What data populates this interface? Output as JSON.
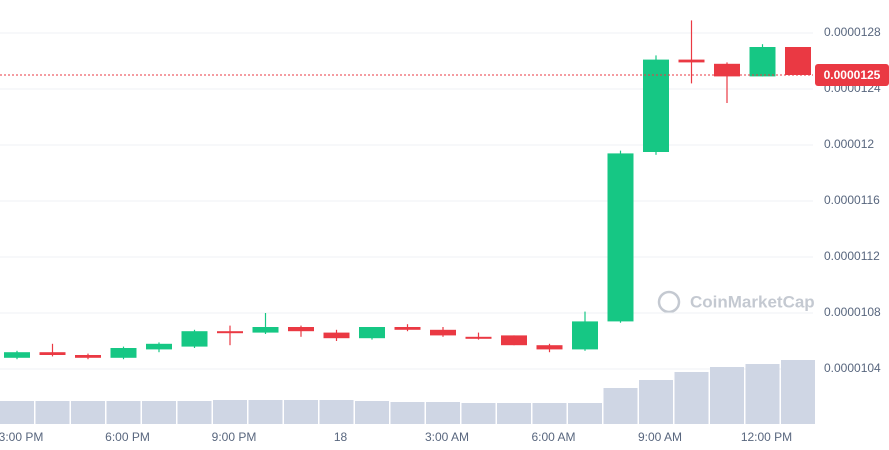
{
  "chart_data": {
    "type": "candlestick",
    "categories": [
      "3:00 PM",
      null,
      null,
      "6:00 PM",
      null,
      null,
      "9:00 PM",
      null,
      null,
      "18",
      null,
      null,
      "3:00 AM",
      null,
      null,
      "6:00 AM",
      null,
      null,
      "9:00 AM",
      null,
      null,
      "12:00 PM",
      null
    ],
    "open": [
      1.048e-05,
      1.052e-05,
      1.05e-05,
      1.048e-05,
      1.054e-05,
      1.056e-05,
      1.067e-05,
      1.066e-05,
      1.07e-05,
      1.066e-05,
      1.062e-05,
      1.07e-05,
      1.068e-05,
      1.063e-05,
      1.064e-05,
      1.057e-05,
      1.054e-05,
      1.074e-05,
      1.195e-05,
      1.261e-05,
      1.258e-05,
      1.249e-05,
      1.27e-05
    ],
    "high": [
      1.053e-05,
      1.058e-05,
      1.051e-05,
      1.056e-05,
      1.059e-05,
      1.068e-05,
      1.071e-05,
      1.08e-05,
      1.071e-05,
      1.068e-05,
      1.07e-05,
      1.072e-05,
      1.07e-05,
      1.066e-05,
      1.064e-05,
      1.058e-05,
      1.081e-05,
      1.196e-05,
      1.264e-05,
      1.289e-05,
      1.259e-05,
      1.272e-05,
      1.27e-05
    ],
    "low": [
      1.047e-05,
      1.049e-05,
      1.047e-05,
      1.047e-05,
      1.052e-05,
      1.055e-05,
      1.057e-05,
      1.065e-05,
      1.063e-05,
      1.06e-05,
      1.061e-05,
      1.067e-05,
      1.063e-05,
      1.061e-05,
      1.057e-05,
      1.052e-05,
      1.053e-05,
      1.073e-05,
      1.193e-05,
      1.244e-05,
      1.23e-05,
      1.249e-05,
      1.25e-05
    ],
    "close": [
      1.052e-05,
      1.05e-05,
      1.048e-05,
      1.055e-05,
      1.058e-05,
      1.067e-05,
      1.066e-05,
      1.07e-05,
      1.067e-05,
      1.062e-05,
      1.07e-05,
      1.068e-05,
      1.064e-05,
      1.062e-05,
      1.057e-05,
      1.054e-05,
      1.074e-05,
      1.194e-05,
      1.261e-05,
      1.259e-05,
      1.249e-05,
      1.27e-05,
      1.25e-05
    ],
    "volume": [
      23,
      23,
      23,
      23,
      23,
      23,
      24,
      24,
      24,
      24,
      23,
      22,
      22,
      21,
      21,
      21,
      21,
      36,
      44,
      52,
      57,
      60,
      64
    ],
    "up_color": "#16c784",
    "down_color": "#ea3943",
    "volume_color": "#cfd6e4",
    "ylim": [
      1e-05,
      1.3e-05
    ],
    "yticks": [
      1.04e-05,
      1.08e-05,
      1.12e-05,
      1.16e-05,
      1.2e-05,
      1.24e-05,
      1.28e-05
    ],
    "grid": true,
    "current_price": 1.25e-05,
    "watermark": "CoinMarketCap"
  }
}
